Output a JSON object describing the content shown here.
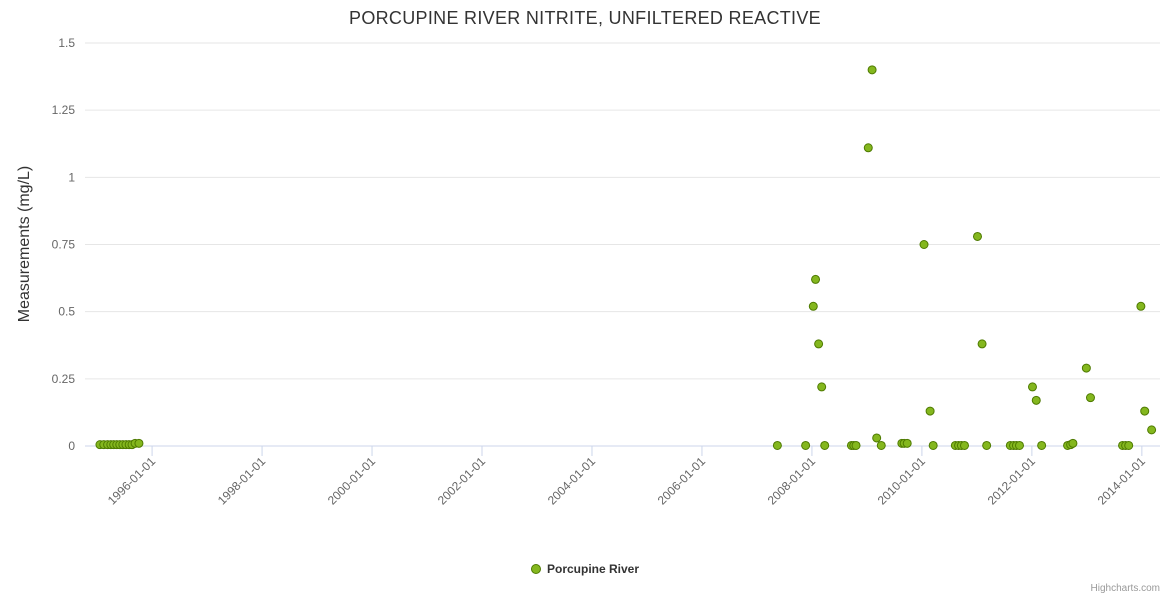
{
  "chart": {
    "title": "PORCUPINE RIVER NITRITE, UNFILTERED REACTIVE",
    "credits": "Highcharts.com"
  },
  "legend": {
    "series_label": "Porcupine River"
  },
  "colors": {
    "marker_fill": "#84b71e",
    "marker_stroke": "#4e7a00",
    "grid": "#e6e6e6",
    "axis_line": "#ccd6eb",
    "label": "#666666",
    "title": "#333333"
  },
  "chart_data": {
    "type": "scatter",
    "title": "PORCUPINE RIVER NITRITE, UNFILTERED REACTIVE",
    "xlabel": "",
    "ylabel": "Measurements (mg/L)",
    "ylim": [
      0,
      1.5
    ],
    "yticks": [
      0,
      0.25,
      0.5,
      0.75,
      1,
      1.25,
      1.5
    ],
    "ytick_labels": [
      "0",
      "0.25",
      "0.5",
      "0.75",
      "1",
      "1.25",
      "1.5"
    ],
    "xtick_labels": [
      "1996-01-01",
      "1998-01-01",
      "2000-01-01",
      "2002-01-01",
      "2004-01-01",
      "2006-01-01",
      "2008-01-01",
      "2010-01-01",
      "2012-01-01",
      "2014-01-01"
    ],
    "xlim_years": [
      1994.78,
      2014.33
    ],
    "grid": "horizontal-only",
    "legend_position": "bottom-center",
    "series": [
      {
        "name": "Porcupine River",
        "points": [
          [
            "1995-01-20",
            0.005
          ],
          [
            "1995-02-15",
            0.005
          ],
          [
            "1995-03-10",
            0.005
          ],
          [
            "1995-04-01",
            0.005
          ],
          [
            "1995-04-20",
            0.005
          ],
          [
            "1995-05-10",
            0.005
          ],
          [
            "1995-05-30",
            0.005
          ],
          [
            "1995-06-20",
            0.005
          ],
          [
            "1995-07-10",
            0.005
          ],
          [
            "1995-08-01",
            0.005
          ],
          [
            "1995-08-20",
            0.005
          ],
          [
            "1995-09-10",
            0.01
          ],
          [
            "1995-10-05",
            0.01
          ],
          [
            "2007-05-15",
            0.002
          ],
          [
            "2007-11-20",
            0.002
          ],
          [
            "2008-01-10",
            0.52
          ],
          [
            "2008-01-25",
            0.62
          ],
          [
            "2008-02-15",
            0.38
          ],
          [
            "2008-03-05",
            0.22
          ],
          [
            "2008-03-25",
            0.002
          ],
          [
            "2008-09-20",
            0.002
          ],
          [
            "2008-10-05",
            0.002
          ],
          [
            "2008-10-20",
            0.002
          ],
          [
            "2009-01-10",
            1.11
          ],
          [
            "2009-02-05",
            1.4
          ],
          [
            "2009-03-05",
            0.03
          ],
          [
            "2009-04-05",
            0.002
          ],
          [
            "2009-08-20",
            0.01
          ],
          [
            "2009-09-05",
            0.01
          ],
          [
            "2009-09-25",
            0.01
          ],
          [
            "2010-01-15",
            0.75
          ],
          [
            "2010-02-25",
            0.13
          ],
          [
            "2010-03-15",
            0.002
          ],
          [
            "2010-08-10",
            0.002
          ],
          [
            "2010-09-01",
            0.002
          ],
          [
            "2010-09-20",
            0.002
          ],
          [
            "2010-10-10",
            0.002
          ],
          [
            "2011-01-05",
            0.78
          ],
          [
            "2011-02-05",
            0.38
          ],
          [
            "2011-03-05",
            0.002
          ],
          [
            "2011-08-10",
            0.002
          ],
          [
            "2011-09-01",
            0.002
          ],
          [
            "2011-09-20",
            0.002
          ],
          [
            "2011-10-10",
            0.002
          ],
          [
            "2012-01-05",
            0.22
          ],
          [
            "2012-01-30",
            0.17
          ],
          [
            "2012-03-05",
            0.002
          ],
          [
            "2012-08-25",
            0.002
          ],
          [
            "2012-09-15",
            0.005
          ],
          [
            "2012-09-30",
            0.01
          ],
          [
            "2012-12-28",
            0.29
          ],
          [
            "2013-01-25",
            0.18
          ],
          [
            "2013-08-25",
            0.002
          ],
          [
            "2013-09-15",
            0.002
          ],
          [
            "2013-10-05",
            0.002
          ],
          [
            "2013-12-25",
            0.52
          ],
          [
            "2014-01-20",
            0.13
          ],
          [
            "2014-03-05",
            0.06
          ]
        ]
      }
    ]
  }
}
